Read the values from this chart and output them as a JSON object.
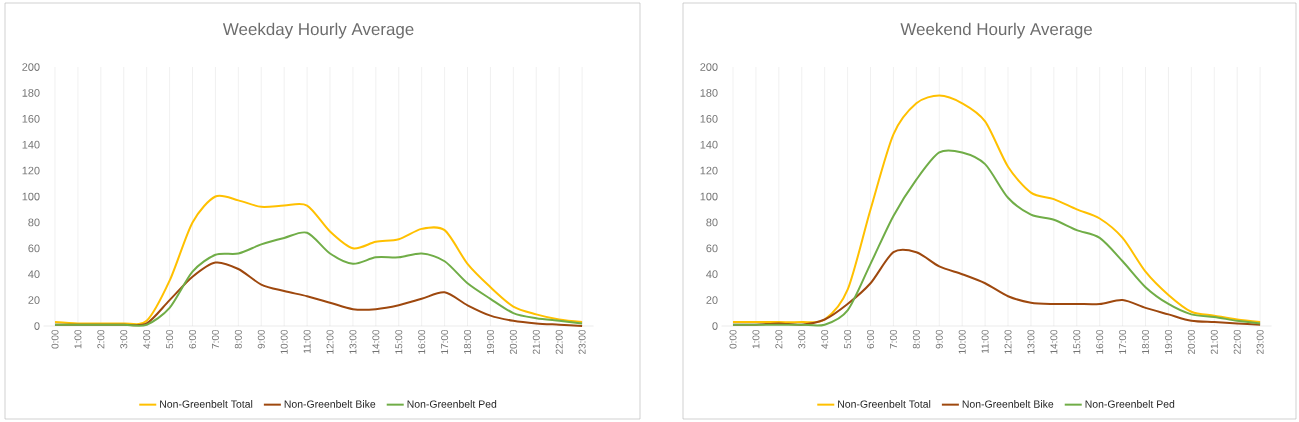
{
  "chart_data": [
    {
      "type": "line",
      "title": "Weekday Hourly Average",
      "categories": [
        "0:00",
        "1:00",
        "2:00",
        "3:00",
        "4:00",
        "5:00",
        "6:00",
        "7:00",
        "8:00",
        "9:00",
        "10:00",
        "11:00",
        "12:00",
        "13:00",
        "14:00",
        "15:00",
        "16:00",
        "17:00",
        "18:00",
        "19:00",
        "20:00",
        "21:00",
        "22:00",
        "23:00"
      ],
      "series": [
        {
          "name": "Non-Greenbelt Total",
          "color": "#ffc000",
          "values": [
            3,
            2,
            2,
            2,
            4,
            35,
            80,
            100,
            97,
            92,
            93,
            93,
            73,
            60,
            65,
            67,
            75,
            74,
            48,
            30,
            15,
            9,
            5,
            3
          ]
        },
        {
          "name": "Non-Greenbelt Bike",
          "color": "#9e480e",
          "values": [
            1,
            1,
            1,
            1,
            2,
            20,
            38,
            49,
            44,
            32,
            27,
            23,
            18,
            13,
            13,
            16,
            21,
            26,
            16,
            8,
            4,
            2,
            1,
            0
          ]
        },
        {
          "name": "Non-Greenbelt Ped",
          "color": "#70ad47",
          "values": [
            1,
            1,
            1,
            1,
            1,
            14,
            42,
            55,
            56,
            63,
            68,
            72,
            56,
            48,
            53,
            53,
            56,
            50,
            33,
            21,
            10,
            6,
            4,
            2
          ]
        }
      ],
      "ylim": [
        0,
        200
      ],
      "yticks": [
        0,
        20,
        40,
        60,
        80,
        100,
        120,
        140,
        160,
        180,
        200
      ],
      "grid": "x",
      "legend": "bottom"
    },
    {
      "type": "line",
      "title": "Weekend Hourly Average",
      "categories": [
        "0:00",
        "1:00",
        "2:00",
        "3:00",
        "4:00",
        "5:00",
        "6:00",
        "7:00",
        "8:00",
        "9:00",
        "10:00",
        "11:00",
        "12:00",
        "13:00",
        "14:00",
        "15:00",
        "16:00",
        "17:00",
        "18:00",
        "19:00",
        "20:00",
        "21:00",
        "22:00",
        "23:00"
      ],
      "series": [
        {
          "name": "Non-Greenbelt Total",
          "color": "#ffc000",
          "values": [
            3,
            3,
            3,
            3,
            5,
            28,
            90,
            148,
            172,
            178,
            172,
            158,
            123,
            103,
            98,
            90,
            83,
            68,
            42,
            24,
            11,
            8,
            5,
            3
          ]
        },
        {
          "name": "Non-Greenbelt Bike",
          "color": "#9e480e",
          "values": [
            1,
            1,
            2,
            1,
            5,
            17,
            33,
            57,
            57,
            46,
            40,
            33,
            23,
            18,
            17,
            17,
            17,
            20,
            14,
            9,
            4,
            3,
            2,
            1
          ]
        },
        {
          "name": "Non-Greenbelt Ped",
          "color": "#70ad47",
          "values": [
            1,
            1,
            1,
            1,
            1,
            12,
            48,
            85,
            113,
            134,
            134,
            125,
            99,
            86,
            82,
            74,
            68,
            50,
            30,
            17,
            9,
            7,
            4,
            2
          ]
        }
      ],
      "ylim": [
        0,
        200
      ],
      "yticks": [
        0,
        20,
        40,
        60,
        80,
        100,
        120,
        140,
        160,
        180,
        200
      ],
      "grid": "x",
      "legend": "bottom"
    }
  ]
}
